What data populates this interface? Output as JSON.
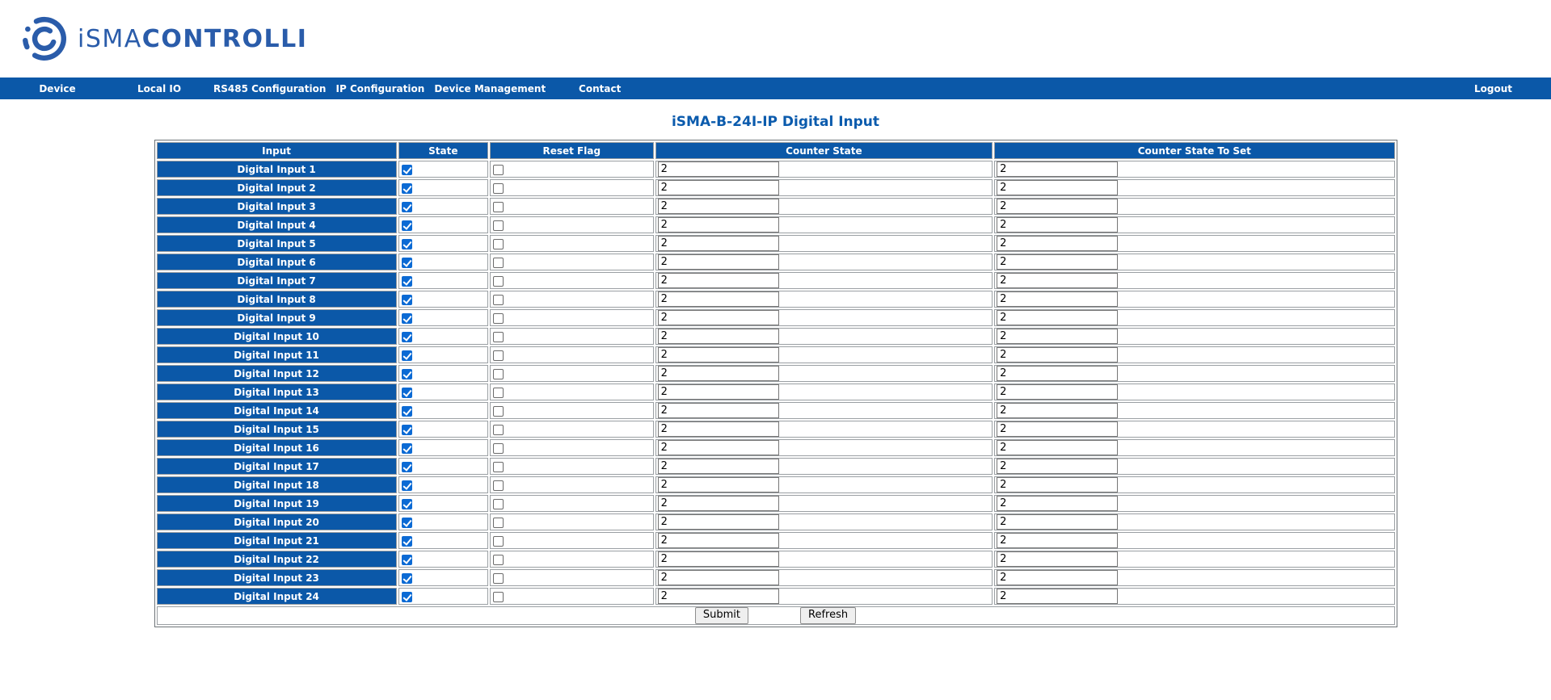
{
  "brand": {
    "logo_light": "iSMA",
    "logo_bold": "CONTROLLI"
  },
  "nav": {
    "items": [
      {
        "id": "device",
        "label": "Device"
      },
      {
        "id": "local-io",
        "label": "Local IO"
      },
      {
        "id": "rs485-configuration",
        "label": "RS485 Configuration"
      },
      {
        "id": "ip-configuration",
        "label": "IP Configuration"
      },
      {
        "id": "device-management",
        "label": "Device Management"
      },
      {
        "id": "contact",
        "label": "Contact"
      }
    ],
    "logout": "Logout"
  },
  "page": {
    "title": "iSMA-B-24I-IP Digital Input"
  },
  "table": {
    "headers": [
      "Input",
      "State",
      "Reset Flag",
      "Counter State",
      "Counter State To Set"
    ],
    "rows": [
      {
        "input": "Digital Input 1",
        "state": true,
        "reset_flag": false,
        "counter_state": "2",
        "counter_state_to_set": "2"
      },
      {
        "input": "Digital Input 2",
        "state": true,
        "reset_flag": false,
        "counter_state": "2",
        "counter_state_to_set": "2"
      },
      {
        "input": "Digital Input 3",
        "state": true,
        "reset_flag": false,
        "counter_state": "2",
        "counter_state_to_set": "2"
      },
      {
        "input": "Digital Input 4",
        "state": true,
        "reset_flag": false,
        "counter_state": "2",
        "counter_state_to_set": "2"
      },
      {
        "input": "Digital Input 5",
        "state": true,
        "reset_flag": false,
        "counter_state": "2",
        "counter_state_to_set": "2"
      },
      {
        "input": "Digital Input 6",
        "state": true,
        "reset_flag": false,
        "counter_state": "2",
        "counter_state_to_set": "2"
      },
      {
        "input": "Digital Input 7",
        "state": true,
        "reset_flag": false,
        "counter_state": "2",
        "counter_state_to_set": "2"
      },
      {
        "input": "Digital Input 8",
        "state": true,
        "reset_flag": false,
        "counter_state": "2",
        "counter_state_to_set": "2"
      },
      {
        "input": "Digital Input 9",
        "state": true,
        "reset_flag": false,
        "counter_state": "2",
        "counter_state_to_set": "2"
      },
      {
        "input": "Digital Input 10",
        "state": true,
        "reset_flag": false,
        "counter_state": "2",
        "counter_state_to_set": "2"
      },
      {
        "input": "Digital Input 11",
        "state": true,
        "reset_flag": false,
        "counter_state": "2",
        "counter_state_to_set": "2"
      },
      {
        "input": "Digital Input 12",
        "state": true,
        "reset_flag": false,
        "counter_state": "2",
        "counter_state_to_set": "2"
      },
      {
        "input": "Digital Input 13",
        "state": true,
        "reset_flag": false,
        "counter_state": "2",
        "counter_state_to_set": "2"
      },
      {
        "input": "Digital Input 14",
        "state": true,
        "reset_flag": false,
        "counter_state": "2",
        "counter_state_to_set": "2"
      },
      {
        "input": "Digital Input 15",
        "state": true,
        "reset_flag": false,
        "counter_state": "2",
        "counter_state_to_set": "2"
      },
      {
        "input": "Digital Input 16",
        "state": true,
        "reset_flag": false,
        "counter_state": "2",
        "counter_state_to_set": "2"
      },
      {
        "input": "Digital Input 17",
        "state": true,
        "reset_flag": false,
        "counter_state": "2",
        "counter_state_to_set": "2"
      },
      {
        "input": "Digital Input 18",
        "state": true,
        "reset_flag": false,
        "counter_state": "2",
        "counter_state_to_set": "2"
      },
      {
        "input": "Digital Input 19",
        "state": true,
        "reset_flag": false,
        "counter_state": "2",
        "counter_state_to_set": "2"
      },
      {
        "input": "Digital Input 20",
        "state": true,
        "reset_flag": false,
        "counter_state": "2",
        "counter_state_to_set": "2"
      },
      {
        "input": "Digital Input 21",
        "state": true,
        "reset_flag": false,
        "counter_state": "2",
        "counter_state_to_set": "2"
      },
      {
        "input": "Digital Input 22",
        "state": true,
        "reset_flag": false,
        "counter_state": "2",
        "counter_state_to_set": "2"
      },
      {
        "input": "Digital Input 23",
        "state": true,
        "reset_flag": false,
        "counter_state": "2",
        "counter_state_to_set": "2"
      },
      {
        "input": "Digital Input 24",
        "state": true,
        "reset_flag": false,
        "counter_state": "2",
        "counter_state_to_set": "2"
      }
    ],
    "buttons": {
      "submit": "Submit",
      "refresh": "Refresh"
    }
  },
  "colors": {
    "primary_blue": "#0b58a8",
    "logo_blue": "#2a5caa",
    "title_blue": "#0b5bad",
    "checkbox_checked_blue": "#0b6ad4"
  }
}
